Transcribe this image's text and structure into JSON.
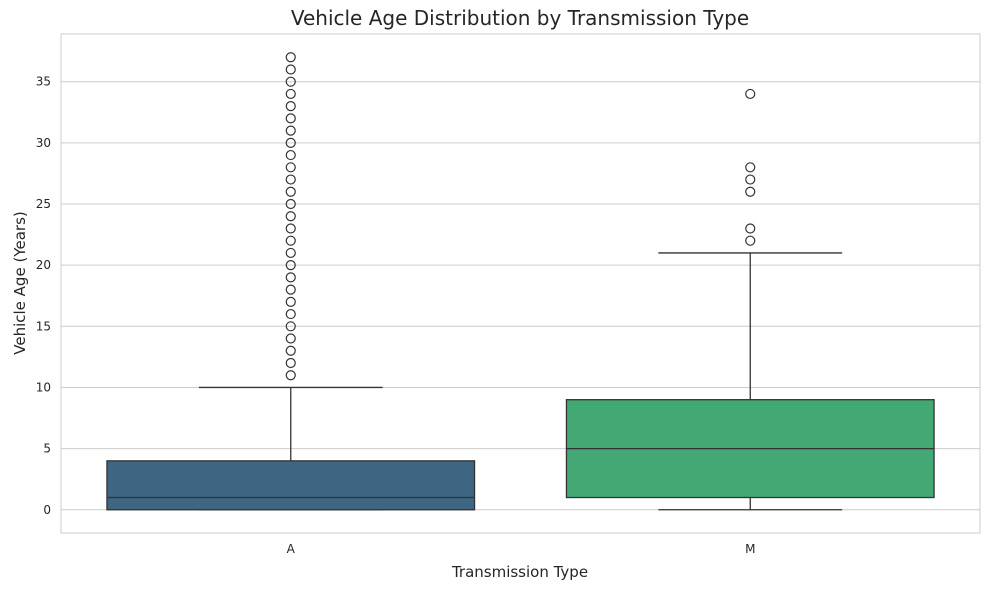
{
  "chart_data": {
    "type": "box",
    "title": "Vehicle Age Distribution by Transmission Type",
    "xlabel": "Transmission Type",
    "ylabel": "Vehicle Age (Years)",
    "ylim": [
      -1.9,
      38.9
    ],
    "yticks": [
      0,
      5,
      10,
      15,
      20,
      25,
      30,
      35
    ],
    "grid": true,
    "categories": [
      "A",
      "M"
    ],
    "series": [
      {
        "category": "A",
        "color": "#3e6682",
        "whisker_low": 0,
        "q1": 0,
        "median": 1,
        "q3": 4,
        "whisker_high": 10,
        "outliers": [
          11,
          12,
          13,
          14,
          15,
          16,
          17,
          18,
          19,
          20,
          21,
          22,
          23,
          24,
          25,
          26,
          27,
          28,
          29,
          30,
          31,
          32,
          33,
          34,
          35,
          36,
          37
        ]
      },
      {
        "category": "M",
        "color": "#43a874",
        "whisker_low": 0,
        "q1": 1,
        "median": 5,
        "q3": 9,
        "whisker_high": 21,
        "outliers": [
          22,
          23,
          26,
          27,
          28,
          34
        ]
      }
    ]
  }
}
